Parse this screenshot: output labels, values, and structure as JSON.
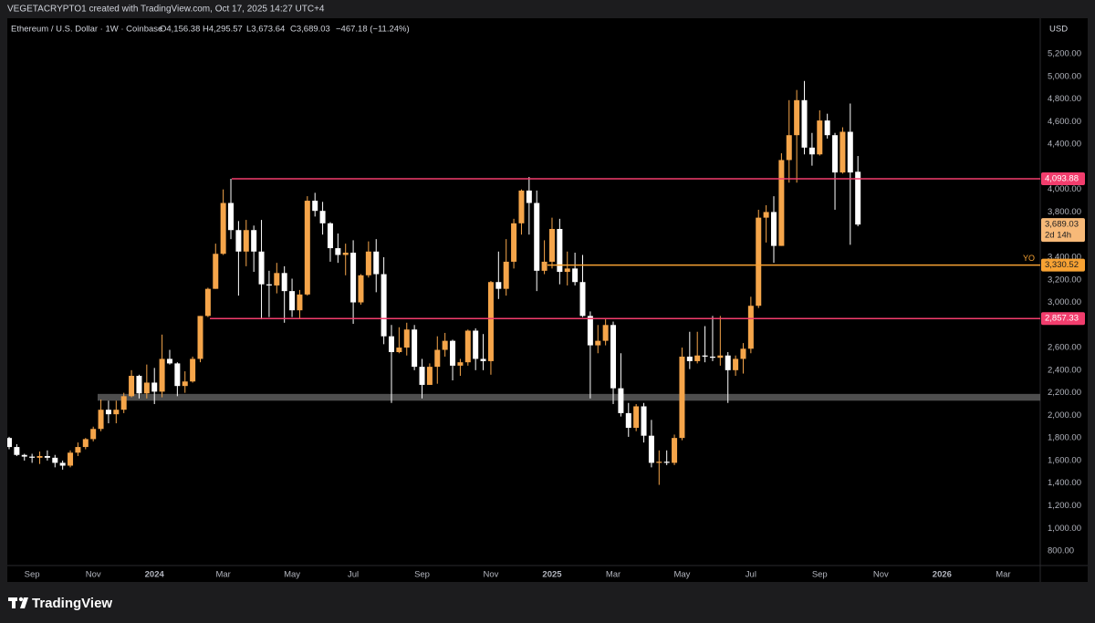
{
  "header": {
    "credit": "VEGETACRYPTO1 created with TradingView.com, Oct 17, 2025 14:27 UTC+4",
    "symbol": "Ethereum / U.S. Dollar · 1W · Coinbase",
    "readout": [
      "O4,156.38",
      "H4,295.57",
      "L3,673.64",
      "C3,689.03",
      "−467.18 (−11.24%)"
    ],
    "currency": "USD",
    "brand": "TradingView"
  },
  "chart_data": {
    "type": "candlestick",
    "up_color": "#f5a54a",
    "down_color": "#ffffff",
    "categories": [
      null,
      null,
      null,
      "Sep",
      null,
      null,
      null,
      null,
      null,
      null,
      null,
      "Nov",
      null,
      null,
      null,
      null,
      null,
      null,
      null,
      "2024",
      null,
      null,
      null,
      null,
      null,
      null,
      null,
      null,
      "Mar",
      null,
      null,
      null,
      null,
      null,
      null,
      null,
      null,
      "May",
      null,
      null,
      null,
      null,
      null,
      null,
      null,
      "Jul",
      null,
      null,
      null,
      null,
      null,
      null,
      null,
      null,
      "Sep",
      null,
      null,
      null,
      null,
      null,
      null,
      null,
      null,
      "Nov",
      null,
      null,
      null,
      null,
      null,
      null,
      null,
      "2025",
      null,
      null,
      null,
      null,
      null,
      null,
      null,
      "Mar",
      null,
      null,
      null,
      null,
      null,
      null,
      null,
      null,
      "May",
      null,
      null,
      null,
      null,
      null,
      null,
      null,
      null,
      "Jul",
      null,
      null,
      null,
      null,
      null,
      null,
      null,
      null,
      "Sep",
      null,
      null,
      null,
      null,
      null,
      null,
      null,
      "Nov",
      null,
      null,
      null,
      null,
      null,
      null,
      null,
      "2026",
      null,
      null,
      null,
      null,
      null,
      null,
      null,
      "Mar",
      null,
      null,
      null,
      null
    ],
    "open": [
      1800,
      1720,
      1650,
      1635,
      1625,
      1640,
      1625,
      1580,
      1555,
      1670,
      1720,
      1790,
      1880,
      2050,
      2010,
      2050,
      2170,
      2350,
      2195,
      2290,
      2210,
      2500,
      2460,
      2260,
      2300,
      2500,
      2880,
      3120,
      3430,
      3880,
      3640,
      3450,
      3640,
      3450,
      3160,
      3150,
      3260,
      3100,
      2930,
      3070,
      3900,
      3810,
      3700,
      3480,
      3420,
      3440,
      3000,
      3240,
      3450,
      3250,
      2700,
      2560,
      2600,
      2760,
      2430,
      2270,
      2430,
      2580,
      2660,
      2440,
      2470,
      2750,
      2500,
      2480,
      3180,
      3120,
      3360,
      3700,
      3990,
      3880,
      3280,
      3360,
      3650,
      3270,
      3300,
      3180,
      2880,
      2620,
      2660,
      2800,
      2240,
      2020,
      1890,
      2080,
      1820,
      1580,
      1590,
      1580,
      1800,
      2520,
      2480,
      2530,
      2520,
      2510,
      2530,
      2400,
      2500,
      2590,
      2970,
      3750,
      3800,
      3500,
      4260,
      4480,
      4790,
      4370,
      4310,
      4610,
      4480,
      4150,
      4510,
      4156.38,
      null,
      null,
      null,
      null,
      null,
      null,
      null,
      null,
      null,
      null,
      null,
      null,
      null,
      null,
      null,
      null,
      null,
      null,
      null,
      null,
      null,
      null,
      null
    ],
    "high": [
      1810,
      1745,
      1660,
      1660,
      1680,
      1690,
      1650,
      1600,
      1690,
      1760,
      1800,
      1900,
      2140,
      2130,
      2130,
      2200,
      2400,
      2360,
      2450,
      2420,
      2715,
      2580,
      2470,
      2390,
      2520,
      2880,
      3130,
      3520,
      4000,
      4094,
      3720,
      3730,
      3680,
      3730,
      3280,
      3350,
      3320,
      3210,
      3110,
      3940,
      3970,
      3890,
      3710,
      3610,
      3520,
      3550,
      3250,
      3540,
      3560,
      3400,
      2800,
      2780,
      2820,
      2800,
      2500,
      2460,
      2700,
      2730,
      2670,
      2500,
      2760,
      2770,
      2720,
      3190,
      3450,
      3560,
      3740,
      4000,
      4110,
      3990,
      3550,
      3750,
      3740,
      3450,
      3440,
      3420,
      2920,
      2800,
      2850,
      2830,
      2550,
      2110,
      2100,
      2110,
      1960,
      1690,
      1690,
      1830,
      2600,
      2740,
      2740,
      2790,
      2880,
      2880,
      2560,
      2530,
      2640,
      3050,
      3820,
      3860,
      3940,
      4320,
      4790,
      4880,
      4960,
      4500,
      4700,
      4670,
      4500,
      4550,
      4760,
      4295.57,
      null,
      null,
      null,
      null,
      null,
      null,
      null,
      null,
      null,
      null,
      null,
      null,
      null,
      null,
      null,
      null,
      null,
      null,
      null,
      null,
      null,
      null,
      null
    ],
    "low": [
      1700,
      1640,
      1600,
      1580,
      1570,
      1600,
      1540,
      1520,
      1540,
      1640,
      1700,
      1770,
      1860,
      1930,
      1930,
      2020,
      2160,
      2150,
      2150,
      2100,
      2160,
      2450,
      2170,
      2200,
      2290,
      2470,
      2870,
      3120,
      3420,
      3560,
      3060,
      3320,
      3270,
      2850,
      2870,
      3080,
      2820,
      2870,
      2860,
      3060,
      3760,
      3600,
      3360,
      3350,
      3240,
      2810,
      2980,
      3220,
      3090,
      2630,
      2110,
      2550,
      2530,
      2400,
      2150,
      2270,
      2280,
      2520,
      2310,
      2350,
      2440,
      2400,
      2400,
      2360,
      3030,
      3060,
      3300,
      3600,
      3600,
      3100,
      3250,
      3300,
      3160,
      3150,
      3150,
      2870,
      2150,
      2550,
      2620,
      2100,
      1990,
      1810,
      1860,
      1760,
      1540,
      1385,
      1560,
      1560,
      1780,
      2410,
      2460,
      2470,
      2480,
      2440,
      2110,
      2350,
      2370,
      2550,
      2950,
      3530,
      3350,
      3500,
      4060,
      4060,
      4310,
      4210,
      4300,
      4450,
      3820,
      4140,
      3510,
      3673.64,
      null,
      null,
      null,
      null,
      null,
      null,
      null,
      null,
      null,
      null,
      null,
      null,
      null,
      null,
      null,
      null,
      null,
      null,
      null,
      null,
      null,
      null,
      null
    ],
    "close": [
      1720,
      1650,
      1635,
      1625,
      1640,
      1625,
      1580,
      1555,
      1670,
      1720,
      1790,
      1880,
      2050,
      2010,
      2050,
      2170,
      2350,
      2195,
      2290,
      2210,
      2500,
      2460,
      2260,
      2300,
      2500,
      2880,
      3120,
      3430,
      3880,
      3640,
      3450,
      3640,
      3450,
      3160,
      3150,
      3260,
      3100,
      2930,
      3070,
      3900,
      3810,
      3700,
      3480,
      3420,
      3440,
      3000,
      3240,
      3450,
      3250,
      2700,
      2560,
      2600,
      2760,
      2430,
      2270,
      2430,
      2580,
      2660,
      2440,
      2470,
      2750,
      2500,
      2480,
      3180,
      3120,
      3360,
      3700,
      3990,
      3880,
      3280,
      3360,
      3650,
      3270,
      3300,
      3180,
      2880,
      2620,
      2660,
      2800,
      2240,
      2020,
      1890,
      2080,
      1820,
      1580,
      1590,
      1580,
      1800,
      2520,
      2480,
      2530,
      2520,
      2510,
      2530,
      2400,
      2500,
      2590,
      2970,
      3750,
      3800,
      3500,
      4260,
      4480,
      4790,
      4370,
      4310,
      4610,
      4480,
      4150,
      4510,
      4150,
      3689.03,
      null,
      null,
      null,
      null,
      null,
      null,
      null,
      null,
      null,
      null,
      null,
      null,
      null,
      null,
      null,
      null,
      null,
      null,
      null,
      null,
      null,
      null,
      null
    ],
    "ylim": [
      671,
      5515
    ],
    "yticks": [
      {
        "value": 800,
        "label": "800.00"
      },
      {
        "value": 1000,
        "label": "1,000.00"
      },
      {
        "value": 1200,
        "label": "1,200.00"
      },
      {
        "value": 1400,
        "label": "1,400.00"
      },
      {
        "value": 1600,
        "label": "1,600.00"
      },
      {
        "value": 1800,
        "label": "1,800.00"
      },
      {
        "value": 2000,
        "label": "2,000.00"
      },
      {
        "value": 2200,
        "label": "2,200.00"
      },
      {
        "value": 2400,
        "label": "2,400.00"
      },
      {
        "value": 2600,
        "label": "2,600.00"
      },
      {
        "value": 3000,
        "label": "3,000.00"
      },
      {
        "value": 3200,
        "label": "3,200.00"
      },
      {
        "value": 3400,
        "label": "3,400.00"
      },
      {
        "value": 3800,
        "label": "3,800.00"
      },
      {
        "value": 4000,
        "label": "4,000.00"
      },
      {
        "value": 4400,
        "label": "4,400.00"
      },
      {
        "value": 4600,
        "label": "4,600.00"
      },
      {
        "value": 4800,
        "label": "4,800.00"
      },
      {
        "value": 5000,
        "label": "5,000.00"
      },
      {
        "value": 5200,
        "label": "5,200.00"
      }
    ],
    "grid": false,
    "levels": [
      {
        "value": 4093.88,
        "label": "4,093.88",
        "color": "#f23d6d"
      },
      {
        "value": 3330.52,
        "label": "3,330.52",
        "color": "#f7a233",
        "name": "YO"
      },
      {
        "value": 2857.33,
        "label": "2,857.33",
        "color": "#f23d6d"
      }
    ],
    "zones": [
      {
        "low": 2130,
        "high": 2190,
        "color": "#5c5c5c"
      }
    ],
    "last_price": {
      "value": 3689.03,
      "label": "3,689.03",
      "countdown": "2d 14h",
      "color": "#f7b978"
    }
  }
}
